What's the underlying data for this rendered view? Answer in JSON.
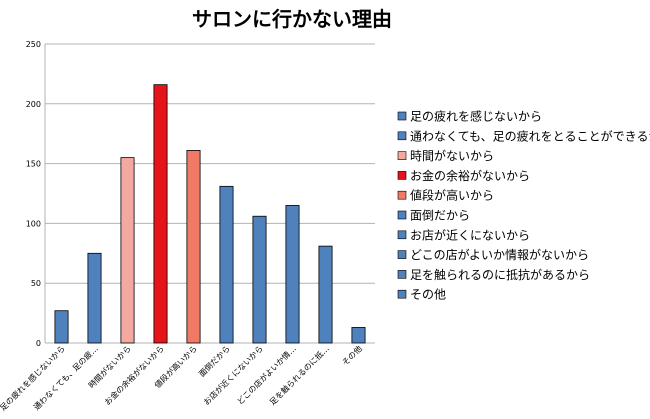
{
  "chart_data": {
    "type": "bar",
    "title": "サロンに行かない理由",
    "xlabel": "",
    "ylabel": "",
    "ylim": [
      0,
      250
    ],
    "yticks": [
      0,
      50,
      100,
      150,
      200,
      250
    ],
    "grid": true,
    "legend_position": "right",
    "categories": [
      "足の疲れを感じないから",
      "通わなくても、足の疲れをとることができるから",
      "時間がないから",
      "お金の余裕がないから",
      "値段が高いから",
      "面倒だから",
      "お店が近くにないから",
      "どこの店がよいか情報がないから",
      "足を触られるのに抵抗があるから",
      "その他"
    ],
    "category_tick_labels": [
      "足の疲れを感じないから",
      "通わなくても、足の疲…",
      "時間がないから",
      "お金の余裕がないから",
      "値段が高いから",
      "面倒だから",
      "お店が近くにないから",
      "どこの店がよいか情…",
      "足を触られるのに抵…",
      "その他"
    ],
    "values": [
      27,
      75,
      155,
      216,
      161,
      131,
      106,
      115,
      81,
      13
    ],
    "colors": [
      "#4f81bd",
      "#4f81bd",
      "#f4a9a0",
      "#e3151a",
      "#f07a66",
      "#4f81bd",
      "#4f81bd",
      "#4f81bd",
      "#4f81bd",
      "#4f81bd"
    ]
  }
}
